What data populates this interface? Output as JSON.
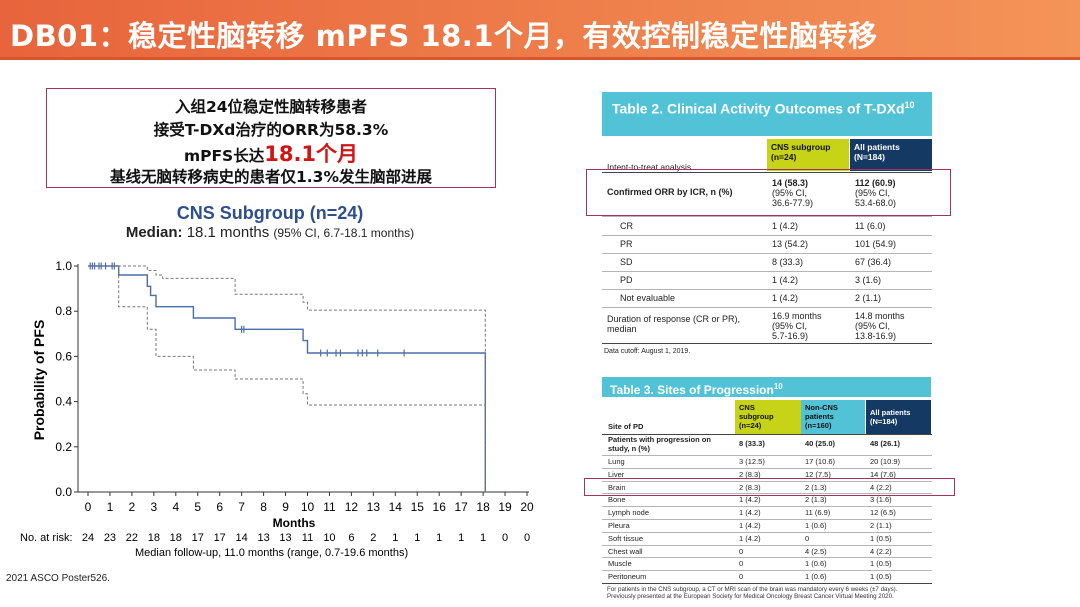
{
  "slide": {
    "title": "DB01：稳定性脑转移 mPFS 18.1个月，有效控制稳定性脑转移",
    "citation": "2021 ASCO Poster526."
  },
  "callout": {
    "line1": "入组24位稳定性脑转移患者",
    "line2": "接受T-DXd治疗的ORR为58.3%",
    "line3_prefix": "mPFS长达",
    "line3_highlight": "18.1个月",
    "line4": "基线无脑转移病史的患者仅1.3%发生脑部进展"
  },
  "km": {
    "title": "CNS Subgroup (n=24)",
    "median_label": "Median:",
    "median_value": "18.1 months",
    "median_ci": "(95% CI, 6.7-18.1 months)",
    "risk_label": "No. at risk:",
    "followup": "Median follow-up, 11.0 months (range, 0.7-19.6 months)"
  },
  "chart_data": {
    "type": "line",
    "xlabel": "Months",
    "ylabel": "Probability of PFS",
    "xlim": [
      0,
      20
    ],
    "ylim": [
      0,
      1.0
    ],
    "x_ticks": [
      0,
      1,
      2,
      3,
      4,
      5,
      6,
      7,
      8,
      9,
      10,
      11,
      12,
      13,
      14,
      15,
      16,
      17,
      18,
      19,
      20
    ],
    "y_ticks": [
      "0.0",
      "0.2",
      "0.4",
      "0.6",
      "0.8",
      "1.0"
    ],
    "series": [
      {
        "role": "estimate",
        "points": [
          [
            0,
            1.0
          ],
          [
            1.4,
            1.0
          ],
          [
            1.4,
            0.96
          ],
          [
            2.7,
            0.96
          ],
          [
            2.7,
            0.91
          ],
          [
            2.85,
            0.91
          ],
          [
            2.85,
            0.87
          ],
          [
            3.1,
            0.87
          ],
          [
            3.1,
            0.82
          ],
          [
            4.8,
            0.82
          ],
          [
            4.8,
            0.77
          ],
          [
            6.7,
            0.77
          ],
          [
            6.7,
            0.72
          ],
          [
            9.8,
            0.72
          ],
          [
            9.8,
            0.67
          ],
          [
            10.0,
            0.67
          ],
          [
            10.0,
            0.615
          ],
          [
            18.1,
            0.615
          ],
          [
            18.1,
            0.0
          ]
        ]
      },
      {
        "role": "upper_ci",
        "points": [
          [
            0,
            1.0
          ],
          [
            2.7,
            1.0
          ],
          [
            2.7,
            0.98
          ],
          [
            3.1,
            0.98
          ],
          [
            3.1,
            0.96
          ],
          [
            3.4,
            0.96
          ],
          [
            3.4,
            0.945
          ],
          [
            6.7,
            0.945
          ],
          [
            6.7,
            0.875
          ],
          [
            9.8,
            0.875
          ],
          [
            9.8,
            0.84
          ],
          [
            10.0,
            0.84
          ],
          [
            10.0,
            0.805
          ],
          [
            18.1,
            0.805
          ],
          [
            18.1,
            0.0
          ]
        ]
      },
      {
        "role": "lower_ci",
        "points": [
          [
            0,
            1.0
          ],
          [
            1.4,
            1.0
          ],
          [
            1.4,
            0.82
          ],
          [
            2.7,
            0.82
          ],
          [
            2.7,
            0.72
          ],
          [
            3.1,
            0.72
          ],
          [
            3.1,
            0.6
          ],
          [
            4.8,
            0.6
          ],
          [
            4.8,
            0.54
          ],
          [
            6.7,
            0.54
          ],
          [
            6.7,
            0.5
          ],
          [
            9.8,
            0.5
          ],
          [
            9.8,
            0.435
          ],
          [
            10.0,
            0.435
          ],
          [
            10.0,
            0.385
          ],
          [
            18.1,
            0.385
          ],
          [
            18.1,
            0.0
          ]
        ]
      }
    ],
    "censor_marks": [
      [
        0.1,
        1.0
      ],
      [
        0.2,
        1.0
      ],
      [
        0.3,
        1.0
      ],
      [
        0.5,
        1.0
      ],
      [
        0.6,
        1.0
      ],
      [
        0.8,
        1.0
      ],
      [
        1.1,
        1.0
      ],
      [
        1.2,
        1.0
      ],
      [
        7.0,
        0.72
      ],
      [
        7.1,
        0.72
      ],
      [
        10.6,
        0.615
      ],
      [
        10.9,
        0.615
      ],
      [
        11.3,
        0.615
      ],
      [
        11.5,
        0.615
      ],
      [
        12.3,
        0.615
      ],
      [
        12.5,
        0.615
      ],
      [
        12.7,
        0.615
      ],
      [
        13.2,
        0.615
      ],
      [
        14.4,
        0.615
      ]
    ],
    "risk_table": [
      24,
      23,
      22,
      18,
      18,
      17,
      17,
      14,
      13,
      13,
      11,
      10,
      6,
      2,
      1,
      1,
      1,
      1,
      1,
      0,
      0
    ],
    "colors": {
      "estimate": "#4a6fa8",
      "ci": "#777777"
    }
  },
  "table2": {
    "title": "Table 2. Clinical Activity Outcomes of T-DXd",
    "title_ref": "10",
    "col_label": "Intent-to-treat analysis",
    "col_cns": [
      "CNS subgroup",
      "(n=24)"
    ],
    "col_all": [
      "All patients",
      "(N=184)"
    ],
    "rows": [
      {
        "label": "Confirmed ORR by ICR, n (%)",
        "bold": true,
        "cns": [
          "14 (58.3)",
          "(95% CI,",
          "36.6-77.9)"
        ],
        "all": [
          "112 (60.9)",
          "(95% CI,",
          "53.4-68.0)"
        ]
      },
      {
        "label": "CR",
        "cns": [
          "1 (4.2)"
        ],
        "all": [
          "11 (6.0)"
        ]
      },
      {
        "label": "PR",
        "cns": [
          "13 (54.2)"
        ],
        "all": [
          "101 (54.9)"
        ]
      },
      {
        "label": "SD",
        "cns": [
          "8 (33.3)"
        ],
        "all": [
          "67 (36.4)"
        ]
      },
      {
        "label": "PD",
        "cns": [
          "1 (4.2)"
        ],
        "all": [
          "3 (1.6)"
        ]
      },
      {
        "label": "Not evaluable",
        "cns": [
          "1 (4.2)"
        ],
        "all": [
          "2 (1.1)"
        ]
      },
      {
        "label": "Duration of response (CR or PR), median",
        "cns": [
          "16.9 months",
          "(95% CI,",
          "5.7-16.9)"
        ],
        "all": [
          "14.8 months",
          "(95% CI,",
          "13.8-16.9)"
        ]
      }
    ],
    "footnote": "Data cutoff: August 1, 2019."
  },
  "table3": {
    "title": "Table 3. Sites of Progression",
    "title_ref": "10",
    "col_label": "Site of PD",
    "col_cns": [
      "CNS",
      "subgroup",
      "(n=24)"
    ],
    "col_noncns": [
      "Non-CNS",
      "patients",
      "(n=160)"
    ],
    "col_all": [
      "All patients",
      "(N=184)"
    ],
    "rows": [
      {
        "label": "Patients with progression on study, n (%)",
        "bold": true,
        "cns": "8 (33.3)",
        "noncns": "40 (25.0)",
        "all": "48 (26.1)"
      },
      {
        "label": "Lung",
        "cns": "3 (12.5)",
        "noncns": "17 (10.6)",
        "all": "20 (10.9)"
      },
      {
        "label": "Liver",
        "cns": "2 (8.3)",
        "noncns": "12 (7.5)",
        "all": "14 (7.6)"
      },
      {
        "label": "Brain",
        "cns": "2 (8.3)",
        "noncns": "2 (1.3)",
        "all": "4 (2.2)"
      },
      {
        "label": "Bone",
        "cns": "1 (4.2)",
        "noncns": "2 (1.3)",
        "all": "3 (1.6)"
      },
      {
        "label": "Lymph node",
        "cns": "1 (4.2)",
        "noncns": "11 (6.9)",
        "all": "12 (6.5)"
      },
      {
        "label": "Pleura",
        "cns": "1 (4.2)",
        "noncns": "1 (0.6)",
        "all": "2 (1.1)"
      },
      {
        "label": "Soft tissue",
        "cns": "1 (4.2)",
        "noncns": "0",
        "all": "1 (0.5)"
      },
      {
        "label": "Chest wall",
        "cns": "0",
        "noncns": "4 (2.5)",
        "all": "4 (2.2)"
      },
      {
        "label": "Muscle",
        "cns": "0",
        "noncns": "1 (0.6)",
        "all": "1 (0.5)"
      },
      {
        "label": "Peritoneum",
        "cns": "0",
        "noncns": "1 (0.6)",
        "all": "1 (0.5)"
      }
    ],
    "footnote_1": "For patients in the CNS subgroup, a CT or MRI scan of the brain was mandatory every 6 weeks (±7 days).",
    "footnote_2": "Previously presented at the European Society for Medical Oncology Breast Cancer Virtual Meeting 2020."
  }
}
